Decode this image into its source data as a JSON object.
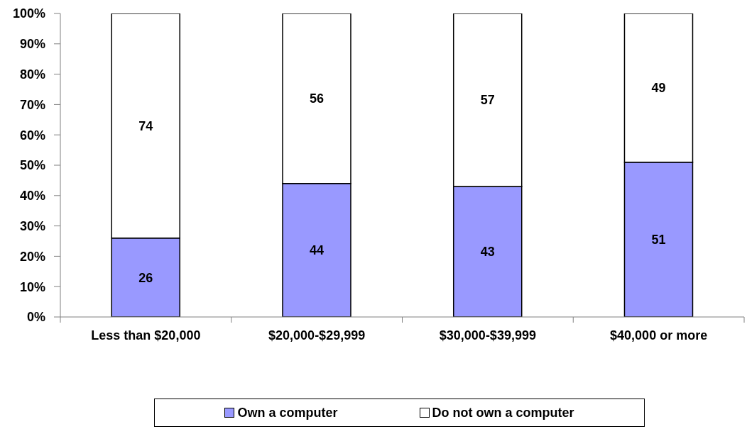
{
  "chart_data": {
    "type": "bar",
    "stacked": true,
    "categories": [
      "Less than $20,000",
      "$20,000-$29,999",
      "$30,000-$39,999",
      "$40,000 or more"
    ],
    "series": [
      {
        "name": "Own a computer",
        "color": "#9999ff",
        "values": [
          26,
          44,
          43,
          51
        ]
      },
      {
        "name": "Do not own a computer",
        "color": "#ffffff",
        "values": [
          74,
          56,
          57,
          49
        ]
      }
    ],
    "ylim": [
      0,
      100
    ],
    "yticks": [
      {
        "value": 0,
        "label": "0%"
      },
      {
        "value": 10,
        "label": "10%"
      },
      {
        "value": 20,
        "label": "20%"
      },
      {
        "value": 30,
        "label": "30%"
      },
      {
        "value": 40,
        "label": "40%"
      },
      {
        "value": 50,
        "label": "50%"
      },
      {
        "value": 60,
        "label": "60%"
      },
      {
        "value": 70,
        "label": "70%"
      },
      {
        "value": 80,
        "label": "80%"
      },
      {
        "value": 90,
        "label": "90%"
      },
      {
        "value": 100,
        "label": "100%"
      }
    ],
    "data_labels": true,
    "legend": "bottom",
    "grid": false
  }
}
